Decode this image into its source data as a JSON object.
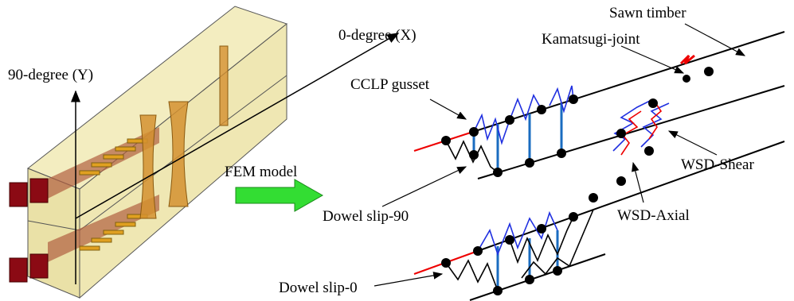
{
  "model_3d": {
    "axis_x": "0-degree (X)",
    "axis_y": "90-degree (Y)"
  },
  "transition": "FEM  model",
  "fem_model": {
    "labels": {
      "cclp_gusset": "CCLP gusset",
      "kamatsugi_joint": "Kamatsugi-joint",
      "sawn_timber": "Sawn timber",
      "wsd_shear": "WSD-Shear",
      "wsd_axial": "WSD-Axial",
      "dowel_slip_90": "Dowel slip-90",
      "dowel_slip_0": "Dowel slip-0"
    }
  }
}
